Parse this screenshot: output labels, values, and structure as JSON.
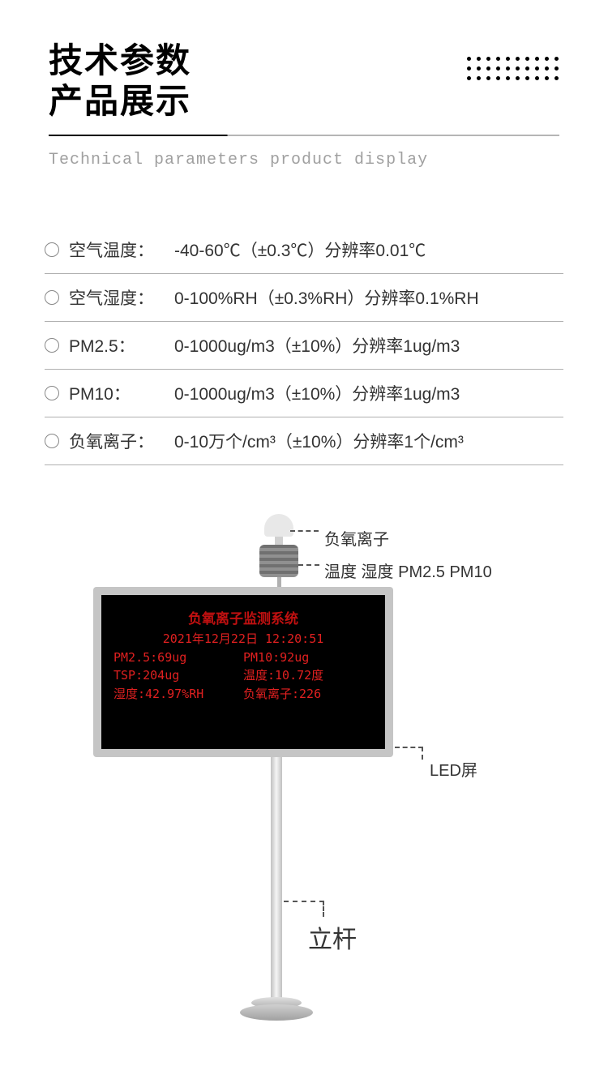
{
  "header": {
    "title_line1": "技术参数",
    "title_line2": "产品展示",
    "subtitle": "Technical parameters product display"
  },
  "specs": [
    {
      "label": "空气温度：",
      "value": "-40-60℃（±0.3℃）分辨率0.01℃"
    },
    {
      "label": "空气湿度：",
      "value": "0-100%RH（±0.3%RH）分辨率0.1%RH"
    },
    {
      "label": "PM2.5：",
      "value": "0-1000ug/m3（±10%）分辨率1ug/m3"
    },
    {
      "label": "PM10：",
      "value": "0-1000ug/m3（±10%）分辨率1ug/m3"
    },
    {
      "label": "负氧离子：",
      "value": "0-10万个/cm³（±10%）分辨率1个/cm³"
    }
  ],
  "annotations": {
    "sensor1": "负氧离子",
    "sensor2": "温度 湿度 PM2.5  PM10",
    "screen": "LED屏",
    "pole": "立杆"
  },
  "led_display": {
    "title": "负氧离子监测系统",
    "date": "2021年12月22日 12:20:51",
    "row1_a": "PM2.5:69ug",
    "row1_b": "PM10:92ug",
    "row2_a": "TSP:204ug",
    "row2_b": "温度:10.72度",
    "row3_a": "湿度:42.97%RH",
    "row3_b": "负氧离子:226"
  },
  "colors": {
    "title_text": "#000000",
    "subtitle_text": "#a0a0a0",
    "spec_text": "#333333",
    "divider": "#b0b0b0",
    "led_bg": "#000000",
    "led_text": "#e02020",
    "screen_frame": "#c5c5c5"
  }
}
